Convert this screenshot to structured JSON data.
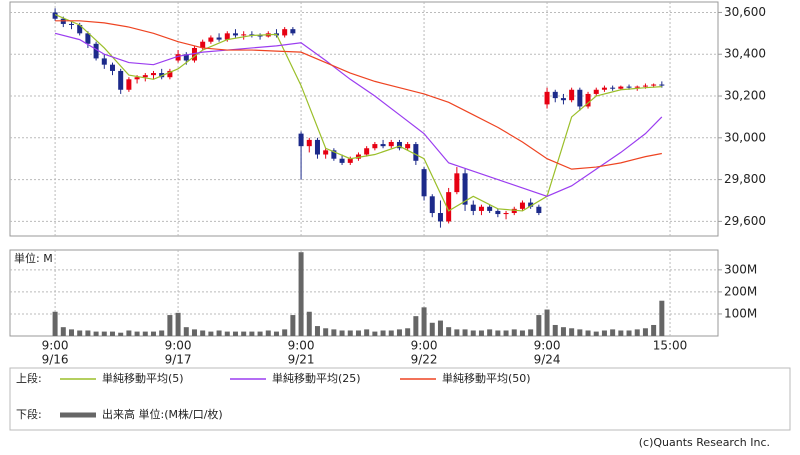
{
  "chart_data": [
    {
      "type": "candlestick",
      "legend_label": "上段:",
      "up_color": "#e60012",
      "down_color": "#1c2a8a",
      "xlim": [
        -5.5,
        80.85
      ],
      "xticks": [
        {
          "value": 0,
          "label": "9:00"
        },
        {
          "value": 15,
          "label": "9:00"
        },
        {
          "value": 30,
          "label": "9:00"
        },
        {
          "value": 45,
          "label": "9:00"
        },
        {
          "value": 60,
          "label": "9:00"
        },
        {
          "value": 75,
          "label": "15:00"
        }
      ],
      "xtick_dates": [
        "9/16",
        "9/17",
        "9/21",
        "9/22",
        "9/24"
      ],
      "ylim": [
        29530,
        30650
      ],
      "yticks": [
        {
          "value": 29600,
          "label": "29,600"
        },
        {
          "value": 29800,
          "label": "29,800"
        },
        {
          "value": 30000,
          "label": "30,000"
        },
        {
          "value": 30200,
          "label": "30,200"
        },
        {
          "value": 30400,
          "label": "30,400"
        },
        {
          "value": 30600,
          "label": "30,600"
        }
      ],
      "grid": true,
      "open": [
        30600,
        30570,
        30545,
        30540,
        30500,
        30450,
        30380,
        30350,
        30320,
        30230,
        30280,
        30290,
        30300,
        30310,
        30290,
        30370,
        30400,
        30370,
        30430,
        30460,
        30480,
        30470,
        30500,
        30490,
        30495,
        30490,
        30485,
        30500,
        30490,
        30520,
        30020,
        29960,
        29990,
        29920,
        29940,
        29900,
        29880,
        29900,
        29920,
        29950,
        29970,
        29960,
        29980,
        29950,
        29970,
        29850,
        29720,
        29640,
        29600,
        29740,
        29830,
        29680,
        29650,
        29670,
        29650,
        29635,
        29640,
        29660,
        29690,
        29670,
        30160,
        30220,
        30190,
        30180,
        30230,
        30150,
        30210,
        30230,
        30240,
        30235,
        30245,
        30240,
        30245,
        30250,
        30255
      ],
      "high": [
        30620,
        30580,
        30560,
        30550,
        30510,
        30460,
        30400,
        30360,
        30330,
        30290,
        30300,
        30310,
        30320,
        30330,
        30330,
        30420,
        30410,
        30440,
        30470,
        30490,
        30500,
        30510,
        30520,
        30510,
        30510,
        30500,
        30510,
        30520,
        30530,
        30530,
        30030,
        30000,
        30000,
        29950,
        29950,
        29920,
        29910,
        29930,
        29960,
        29980,
        29990,
        29990,
        29990,
        29980,
        29980,
        29860,
        29730,
        29700,
        29760,
        29860,
        29850,
        29700,
        29680,
        29680,
        29660,
        29650,
        29670,
        29700,
        29710,
        29680,
        30240,
        30230,
        30210,
        30240,
        30240,
        30220,
        30240,
        30250,
        30250,
        30250,
        30255,
        30250,
        30260,
        30260,
        30270
      ],
      "low": [
        30560,
        30530,
        30520,
        30490,
        30430,
        30370,
        30330,
        30300,
        30210,
        30220,
        30260,
        30270,
        30280,
        30280,
        30280,
        30360,
        30350,
        30360,
        30420,
        30450,
        30460,
        30460,
        30480,
        30470,
        30480,
        30470,
        30480,
        30480,
        30480,
        30490,
        29800,
        29930,
        29900,
        29900,
        29890,
        29870,
        29870,
        29890,
        29910,
        29940,
        29950,
        29950,
        29940,
        29940,
        29870,
        29700,
        29620,
        29570,
        29590,
        29730,
        29650,
        29630,
        29630,
        29640,
        29620,
        29610,
        29630,
        29650,
        29660,
        29630,
        30140,
        30170,
        30160,
        30170,
        30130,
        30140,
        30200,
        30220,
        30225,
        30230,
        30230,
        30225,
        30235,
        30240,
        30240
      ],
      "close": [
        30570,
        30545,
        30540,
        30500,
        30450,
        30380,
        30350,
        30320,
        30230,
        30280,
        30290,
        30300,
        30310,
        30290,
        30320,
        30400,
        30370,
        30430,
        30460,
        30480,
        30470,
        30500,
        30490,
        30495,
        30490,
        30485,
        30500,
        30490,
        30520,
        30500,
        29960,
        29990,
        29920,
        29940,
        29900,
        29880,
        29900,
        29920,
        29950,
        29970,
        29960,
        29980,
        29950,
        29970,
        29890,
        29720,
        29640,
        29600,
        29740,
        29830,
        29680,
        29650,
        29670,
        29650,
        29635,
        29640,
        29660,
        29690,
        29670,
        29640,
        30220,
        30190,
        30180,
        30230,
        30150,
        30210,
        30230,
        30240,
        30235,
        30245,
        30240,
        30245,
        30250,
        30255,
        30250
      ],
      "series": [
        {
          "name": "単純移動平均(5)",
          "color": "#9bbf2a",
          "x": [
            0,
            3,
            6,
            9,
            12,
            15,
            18,
            21,
            24,
            27,
            30,
            33,
            36,
            39,
            42,
            45,
            48,
            51,
            54,
            57,
            60,
            63,
            66,
            69,
            72,
            74
          ],
          "values": [
            30590,
            30540,
            30430,
            30300,
            30280,
            30330,
            30420,
            30470,
            30490,
            30495,
            30250,
            29950,
            29900,
            29920,
            29960,
            29900,
            29650,
            29720,
            29660,
            29650,
            29720,
            30100,
            30200,
            30230,
            30240,
            30245
          ]
        },
        {
          "name": "単純移動平均(25)",
          "color": "#9b3df0",
          "x": [
            0,
            3,
            6,
            9,
            12,
            15,
            18,
            21,
            24,
            27,
            30,
            33,
            36,
            39,
            42,
            45,
            48,
            51,
            54,
            57,
            60,
            63,
            66,
            69,
            72,
            74
          ],
          "values": [
            30500,
            30470,
            30400,
            30360,
            30350,
            30390,
            30410,
            30420,
            30430,
            30440,
            30455,
            30370,
            30280,
            30200,
            30110,
            30020,
            29880,
            29840,
            29800,
            29760,
            29720,
            29770,
            29850,
            29930,
            30020,
            30100
          ]
        },
        {
          "name": "単純移動平均(50)",
          "color": "#ee4422",
          "x": [
            0,
            3,
            6,
            9,
            12,
            15,
            18,
            21,
            24,
            27,
            30,
            33,
            36,
            39,
            42,
            45,
            48,
            51,
            54,
            57,
            60,
            63,
            66,
            69,
            72,
            74
          ],
          "values": [
            30560,
            30560,
            30550,
            30530,
            30500,
            30460,
            30430,
            30420,
            30420,
            30415,
            30410,
            30360,
            30310,
            30270,
            30240,
            30210,
            30170,
            30110,
            30050,
            29980,
            29900,
            29850,
            29860,
            29880,
            29910,
            29925
          ]
        }
      ]
    },
    {
      "type": "bar",
      "legend_label": "下段:",
      "unit_label": "単位: M",
      "ylim": [
        0,
        390
      ],
      "yticks": [
        {
          "value": 100,
          "label": "100M"
        },
        {
          "value": 200,
          "label": "200M"
        },
        {
          "value": 300,
          "label": "300M"
        }
      ],
      "series": [
        {
          "name": "出来高 単位:(M株/口/枚)",
          "color": "#666666",
          "values": [
            110,
            40,
            30,
            25,
            25,
            20,
            20,
            20,
            15,
            25,
            20,
            20,
            20,
            25,
            95,
            105,
            40,
            30,
            25,
            20,
            25,
            20,
            20,
            20,
            20,
            20,
            25,
            20,
            30,
            95,
            380,
            110,
            45,
            35,
            30,
            25,
            25,
            25,
            30,
            20,
            25,
            25,
            30,
            35,
            90,
            130,
            60,
            70,
            40,
            30,
            30,
            25,
            25,
            30,
            25,
            25,
            30,
            25,
            30,
            95,
            120,
            50,
            40,
            35,
            30,
            25,
            20,
            25,
            30,
            25,
            25,
            30,
            35,
            50,
            160
          ]
        }
      ]
    }
  ],
  "footer": "(c)Quants Research Inc."
}
